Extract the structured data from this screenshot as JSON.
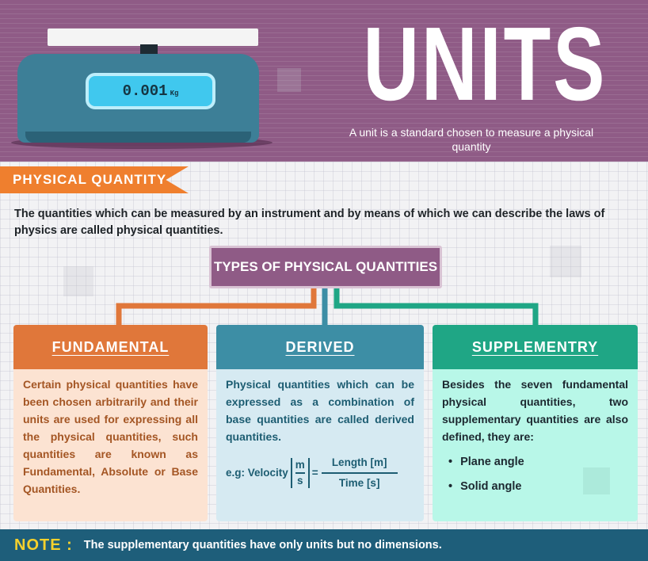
{
  "header": {
    "scale_reading": "0.001",
    "scale_unit": "Kg",
    "title": "UNITS",
    "subtitle": "A unit is a standard chosen to measure a physical quantity"
  },
  "physical_quantity": {
    "banner": "PHYSICAL QUANTITY",
    "description": "The quantities which can be measured by an instrument and by means of which we can describe the laws of physics are called physical quantities."
  },
  "types": {
    "title": "TYPES OF PHYSICAL QUANTITIES"
  },
  "cards": {
    "fundamental": {
      "title": "FUNDAMENTAL",
      "text": "Certain physical quantities have been chosen arbitrarily and their units are used for expressing all the physical quantities, such quantities are known as Fundamental, Absolute or Base Quantities."
    },
    "derived": {
      "title": "DERIVED",
      "text": "Physical quantities which can be expressed as a combination of base quantities are called derived quantities.",
      "example_prefix": "e.g: Velocity",
      "bracket_top": "m",
      "bracket_bottom": "s",
      "equals": "=",
      "numerator": "Length [m]",
      "denominator": "Time [s]"
    },
    "supplementary": {
      "title": "SUPPLEMENTRY",
      "text": "Besides the seven fundamental physical quantities, two supplementary quantities are also defined, they are:",
      "items": [
        "Plane angle",
        "Solid angle"
      ]
    }
  },
  "note": {
    "label": "NOTE :",
    "text": "The supplementary quantities have only units but no dimensions."
  },
  "colors": {
    "header_purple": "#8f5b86",
    "orange": "#e0773a",
    "blue": "#3d8ea5",
    "green": "#1fa685",
    "note_bar": "#1e5e7a",
    "note_label": "#f6d12c"
  }
}
